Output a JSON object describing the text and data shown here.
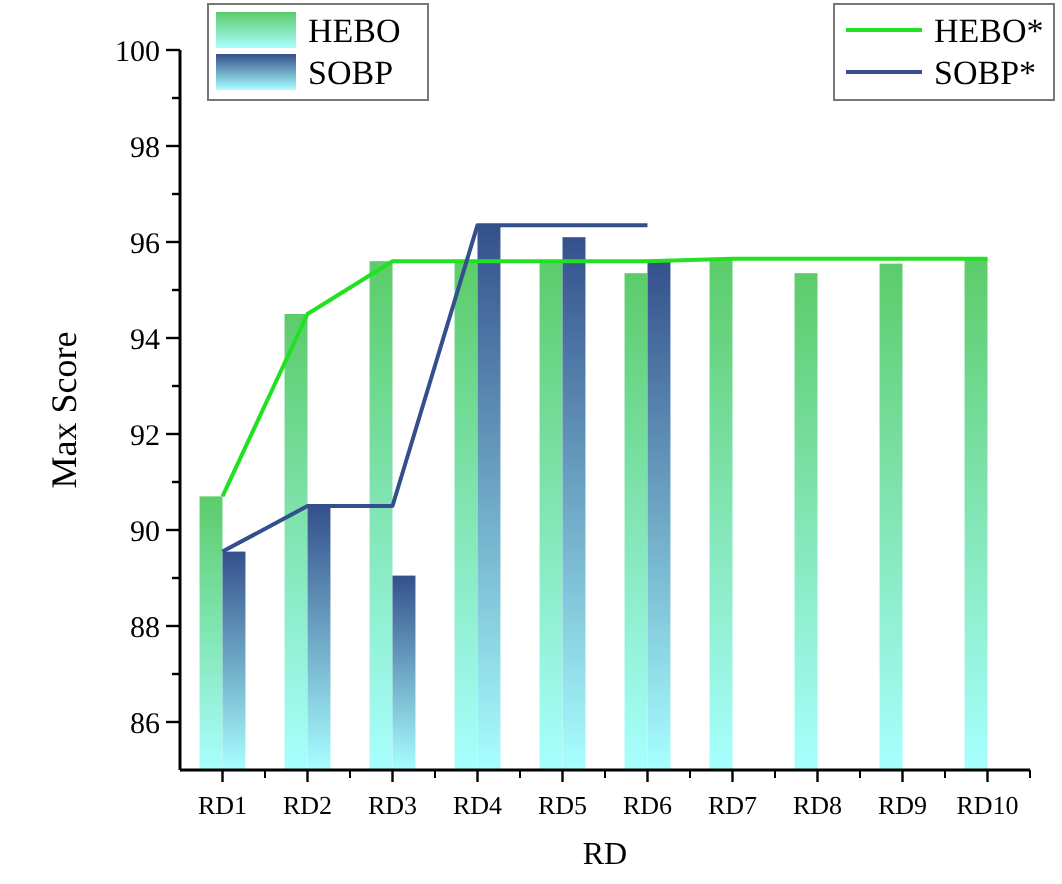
{
  "chart_data": {
    "type": "bar",
    "xlabel": "RD",
    "ylabel": "Max Score",
    "categories": [
      "RD1",
      "RD2",
      "RD3",
      "RD4",
      "RD5",
      "RD6",
      "RD7",
      "RD8",
      "RD9",
      "RD10"
    ],
    "series": [
      {
        "name": "HEBO",
        "color": "#5ccc6a",
        "values": [
          90.7,
          94.5,
          95.6,
          95.6,
          95.6,
          95.35,
          95.65,
          95.35,
          95.55,
          95.65
        ]
      },
      {
        "name": "SOBP",
        "color": "#34508c",
        "values": [
          89.55,
          90.5,
          89.05,
          96.35,
          96.1,
          95.6,
          null,
          null,
          null,
          null
        ]
      },
      {
        "name": "HEBO*",
        "type": "line",
        "color": "#22e022",
        "values": [
          90.7,
          94.5,
          95.6,
          95.6,
          95.6,
          95.6,
          95.65,
          95.65,
          95.65,
          95.65
        ]
      },
      {
        "name": "SOBP*",
        "type": "line",
        "color": "#34508c",
        "values": [
          89.55,
          90.5,
          90.5,
          96.35,
          96.35,
          96.35,
          null,
          null,
          null,
          null
        ]
      }
    ],
    "ylim": [
      85,
      100
    ],
    "yticks": [
      86,
      {
        "value": 87,
        "label": null
      },
      88,
      {
        "value": 89,
        "label": null
      },
      90,
      {
        "value": 91,
        "label": null
      },
      92,
      {
        "value": 93,
        "label": null
      },
      94,
      {
        "value": 95,
        "label": null
      },
      96,
      {
        "value": 97,
        "label": null
      },
      98,
      {
        "value": 99,
        "label": null
      },
      100
    ],
    "grid": false,
    "legend": "top",
    "marker": "none",
    "line_style": "solid"
  }
}
